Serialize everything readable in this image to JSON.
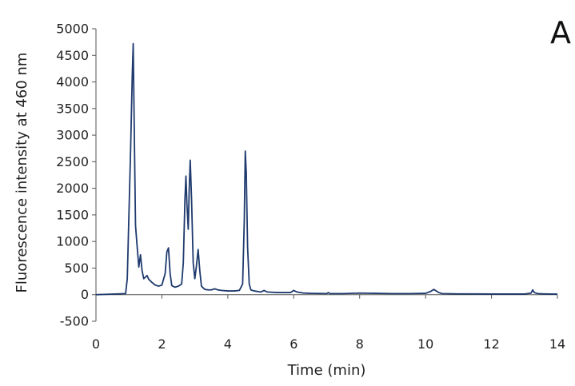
{
  "chart_data": {
    "type": "line",
    "panel_label": "A",
    "title": "",
    "xlabel": "Time (min)",
    "ylabel": "Fluorescence intensity at 460 nm",
    "xlim": [
      0,
      14
    ],
    "ylim": [
      -500,
      5000
    ],
    "x_ticks": [
      0,
      2,
      4,
      6,
      8,
      10,
      12,
      14
    ],
    "y_ticks": [
      -500,
      0,
      500,
      1000,
      1500,
      2000,
      2500,
      3000,
      3500,
      4000,
      4500,
      5000
    ],
    "grid": false,
    "legend": "none",
    "line_color": "#1f3a6e",
    "series": [
      {
        "x": [
          0,
          0.9,
          0.95,
          1.0,
          1.05,
          1.1,
          1.13,
          1.16,
          1.2,
          1.25,
          1.3,
          1.35,
          1.4,
          1.45,
          1.5,
          1.55,
          1.6,
          1.7,
          1.8,
          1.9,
          2.0,
          2.1,
          2.15,
          2.2,
          2.25,
          2.3,
          2.4,
          2.5,
          2.6,
          2.65,
          2.7,
          2.73,
          2.76,
          2.8,
          2.83,
          2.86,
          2.9,
          2.95,
          3.0,
          3.05,
          3.1,
          3.15,
          3.2,
          3.3,
          3.4,
          3.5,
          3.6,
          3.7,
          3.8,
          4.0,
          4.2,
          4.35,
          4.45,
          4.5,
          4.53,
          4.56,
          4.6,
          4.65,
          4.7,
          4.8,
          5.0,
          5.1,
          5.2,
          5.5,
          5.9,
          6.0,
          6.1,
          6.3,
          6.5,
          7.0,
          7.05,
          7.1,
          7.5,
          8.0,
          8.5,
          9.0,
          9.5,
          10.0,
          10.15,
          10.25,
          10.3,
          10.4,
          10.5,
          11.0,
          11.5,
          12.0,
          12.5,
          13.0,
          13.2,
          13.25,
          13.3,
          13.4,
          13.6,
          14.0
        ],
        "y": [
          0,
          20,
          300,
          1500,
          2700,
          4100,
          4720,
          3200,
          1300,
          900,
          520,
          750,
          450,
          300,
          330,
          360,
          290,
          230,
          180,
          160,
          180,
          400,
          800,
          880,
          400,
          170,
          140,
          160,
          200,
          600,
          1800,
          2230,
          1700,
          1230,
          2000,
          2530,
          1800,
          600,
          300,
          550,
          850,
          450,
          160,
          100,
          90,
          90,
          110,
          90,
          80,
          70,
          70,
          80,
          200,
          1400,
          2700,
          2300,
          900,
          200,
          90,
          70,
          50,
          80,
          50,
          40,
          40,
          80,
          50,
          30,
          25,
          20,
          40,
          20,
          20,
          30,
          25,
          20,
          20,
          25,
          60,
          100,
          80,
          40,
          20,
          15,
          15,
          12,
          12,
          12,
          30,
          90,
          40,
          20,
          15,
          10
        ]
      }
    ]
  }
}
